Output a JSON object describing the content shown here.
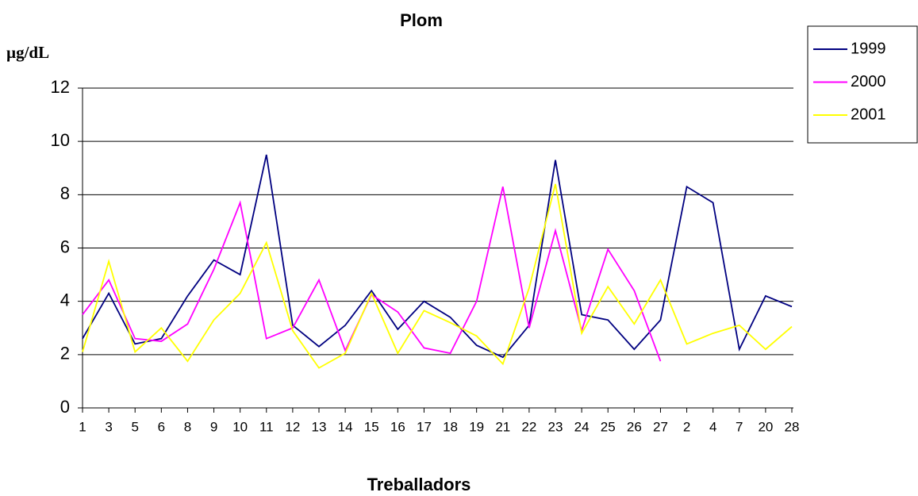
{
  "chart_data": {
    "type": "line",
    "title": "Plom",
    "y_label": "µg/dL",
    "x_label": "Treballadors",
    "categories": [
      "1",
      "3",
      "5",
      "6",
      "8",
      "9",
      "10",
      "11",
      "12",
      "13",
      "14",
      "15",
      "16",
      "17",
      "18",
      "19",
      "21",
      "22",
      "23",
      "24",
      "25",
      "26",
      "27",
      "2",
      "4",
      "7",
      "20",
      "28"
    ],
    "series": [
      {
        "name": "1999",
        "color": "#000080",
        "values": [
          2.6,
          4.3,
          2.4,
          2.6,
          4.2,
          5.55,
          5.0,
          9.5,
          3.1,
          2.3,
          3.1,
          4.4,
          2.95,
          4.0,
          3.4,
          2.35,
          1.9,
          3.1,
          9.3,
          3.5,
          3.3,
          2.2,
          3.3,
          8.3,
          7.7,
          2.2,
          4.2,
          3.8
        ]
      },
      {
        "name": "2000",
        "color": "#ff00ff",
        "values": [
          3.5,
          4.8,
          2.6,
          2.5,
          3.15,
          5.2,
          7.7,
          2.6,
          3.0,
          4.8,
          2.15,
          4.25,
          3.6,
          2.25,
          2.05,
          4.0,
          8.3,
          3.0,
          6.65,
          2.9,
          5.95,
          4.4,
          1.75,
          null,
          null,
          null,
          null,
          null
        ]
      },
      {
        "name": "2001",
        "color": "#ffff00",
        "values": [
          2.1,
          5.5,
          2.1,
          3.0,
          1.75,
          3.3,
          4.3,
          6.2,
          2.9,
          1.5,
          2.05,
          4.3,
          2.05,
          3.65,
          3.2,
          2.7,
          1.65,
          4.5,
          8.4,
          2.8,
          4.55,
          3.15,
          4.8,
          2.4,
          2.8,
          3.1,
          2.2,
          3.05
        ]
      }
    ],
    "ylim": [
      0,
      12
    ],
    "yticks": [
      0,
      2,
      4,
      6,
      8,
      10,
      12
    ],
    "grid": true,
    "legend": "top-right"
  }
}
